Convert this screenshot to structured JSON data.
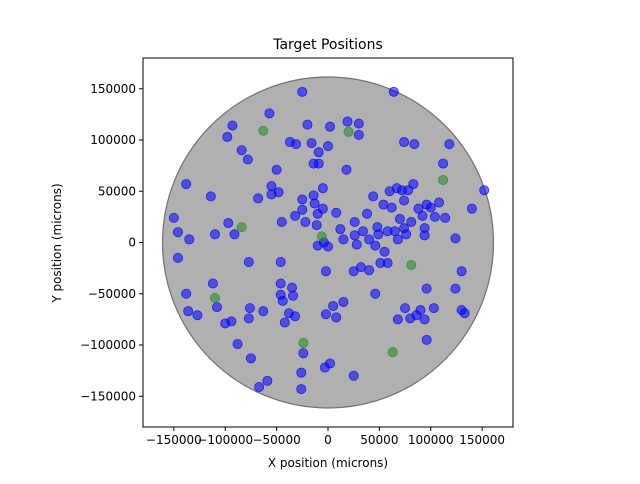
{
  "chart_data": {
    "type": "scatter",
    "title": "Target Positions",
    "xlabel": "X position (microns)",
    "ylabel": "Y position (microns)",
    "xlim": [
      -180000,
      180000
    ],
    "ylim": [
      -180000,
      180000
    ],
    "xticks": [
      -150000,
      -100000,
      -50000,
      0,
      50000,
      100000,
      150000
    ],
    "yticks": [
      -150000,
      -100000,
      -50000,
      0,
      50000,
      100000,
      150000
    ],
    "xtick_labels": [
      "−150000",
      "−100000",
      "−50000",
      "0",
      "50000",
      "100000",
      "150000"
    ],
    "ytick_labels": [
      "−150000",
      "−100000",
      "−50000",
      "0",
      "50000",
      "100000",
      "150000"
    ],
    "grid": false,
    "legend": "none",
    "field": {
      "center": [
        0,
        0
      ],
      "radius": 161000,
      "color": "#b0b0b0",
      "edge_color": "#707070"
    },
    "series": [
      {
        "color": "#0000ff",
        "points": [
          [
            -150000,
            24000
          ],
          [
            -146000,
            10000
          ],
          [
            -138000,
            57000
          ],
          [
            -135000,
            3000
          ],
          [
            -146000,
            -15000
          ],
          [
            -138000,
            -50000
          ],
          [
            -136000,
            -67000
          ],
          [
            -127000,
            -71000
          ],
          [
            -114000,
            45000
          ],
          [
            -110000,
            8000
          ],
          [
            -112000,
            -40000
          ],
          [
            -108000,
            -63000
          ],
          [
            -100000,
            -79000
          ],
          [
            -97000,
            19000
          ],
          [
            -94000,
            -77000
          ],
          [
            -91000,
            8000
          ],
          [
            -93000,
            114000
          ],
          [
            -98000,
            103000
          ],
          [
            -84000,
            90000
          ],
          [
            -78000,
            81000
          ],
          [
            -77000,
            -74000
          ],
          [
            -76000,
            -64000
          ],
          [
            -77000,
            -19000
          ],
          [
            -75000,
            -113000
          ],
          [
            -88000,
            -99000
          ],
          [
            -68000,
            43000
          ],
          [
            -63000,
            -67000
          ],
          [
            -67000,
            -141000
          ],
          [
            -59000,
            -135000
          ],
          [
            -57000,
            126000
          ],
          [
            -55000,
            55000
          ],
          [
            -55000,
            47000
          ],
          [
            -50000,
            71000
          ],
          [
            -48000,
            49000
          ],
          [
            -45000,
            20000
          ],
          [
            -46000,
            -19000
          ],
          [
            -46000,
            -40000
          ],
          [
            -46000,
            -51000
          ],
          [
            -44000,
            -57000
          ],
          [
            -42000,
            -78000
          ],
          [
            -35000,
            -44000
          ],
          [
            -34000,
            -52000
          ],
          [
            -38000,
            -69000
          ],
          [
            -32000,
            -72000
          ],
          [
            -37000,
            98000
          ],
          [
            -31000,
            96000
          ],
          [
            -25000,
            147000
          ],
          [
            -24000,
            -108000
          ],
          [
            -26000,
            -127000
          ],
          [
            -26000,
            -143000
          ],
          [
            -20000,
            115000
          ],
          [
            -16000,
            97000
          ],
          [
            -14000,
            77000
          ],
          [
            -9000,
            77000
          ],
          [
            -9000,
            88000
          ],
          [
            -32000,
            26000
          ],
          [
            -25000,
            42000
          ],
          [
            -25000,
            32000
          ],
          [
            -22000,
            20000
          ],
          [
            -14000,
            46000
          ],
          [
            -13000,
            38000
          ],
          [
            -10000,
            28000
          ],
          [
            -11000,
            17000
          ],
          [
            -10000,
            -3000
          ],
          [
            -5000,
            53000
          ],
          [
            -5000,
            33000
          ],
          [
            -4000,
            0
          ],
          [
            0,
            94000
          ],
          [
            2000,
            113000
          ],
          [
            0,
            -4000
          ],
          [
            -2000,
            -28000
          ],
          [
            -2000,
            -70000
          ],
          [
            5000,
            -62000
          ],
          [
            8000,
            -73000
          ],
          [
            -3000,
            -122000
          ],
          [
            2000,
            -118000
          ],
          [
            8000,
            29000
          ],
          [
            12000,
            13000
          ],
          [
            15000,
            3000
          ],
          [
            15000,
            -58000
          ],
          [
            18000,
            71000
          ],
          [
            19000,
            118000
          ],
          [
            25000,
            -28000
          ],
          [
            25000,
            -130000
          ],
          [
            26000,
            20000
          ],
          [
            26000,
            7000
          ],
          [
            28000,
            -2000
          ],
          [
            30000,
            116000
          ],
          [
            30000,
            105000
          ],
          [
            32000,
            -24000
          ],
          [
            34000,
            11000
          ],
          [
            38000,
            28000
          ],
          [
            40000,
            3000
          ],
          [
            40000,
            -27000
          ],
          [
            44000,
            45000
          ],
          [
            46000,
            -50000
          ],
          [
            46000,
            -3000
          ],
          [
            48000,
            15000
          ],
          [
            49000,
            8000
          ],
          [
            51000,
            -20000
          ],
          [
            54000,
            37000
          ],
          [
            55000,
            -9000
          ],
          [
            58000,
            11000
          ],
          [
            58000,
            -20000
          ],
          [
            60000,
            50000
          ],
          [
            62000,
            34000
          ],
          [
            64000,
            147000
          ],
          [
            65000,
            11000
          ],
          [
            67000,
            53000
          ],
          [
            68000,
            3000
          ],
          [
            68000,
            -75000
          ],
          [
            70000,
            23000
          ],
          [
            72000,
            51000
          ],
          [
            74000,
            98000
          ],
          [
            74000,
            14000
          ],
          [
            74000,
            41000
          ],
          [
            75000,
            -64000
          ],
          [
            76000,
            8000
          ],
          [
            78000,
            51000
          ],
          [
            80000,
            -74000
          ],
          [
            81000,
            20000
          ],
          [
            83000,
            57000
          ],
          [
            84000,
            96000
          ],
          [
            86000,
            -71000
          ],
          [
            88000,
            33000
          ],
          [
            90000,
            -66000
          ],
          [
            92000,
            26000
          ],
          [
            94000,
            14000
          ],
          [
            94000,
            7000
          ],
          [
            96000,
            37000
          ],
          [
            96000,
            -45000
          ],
          [
            94000,
            -75000
          ],
          [
            96000,
            -95000
          ],
          [
            100000,
            34000
          ],
          [
            103000,
            -64000
          ],
          [
            104000,
            25000
          ],
          [
            108000,
            39000
          ],
          [
            112000,
            77000
          ],
          [
            114000,
            24000
          ],
          [
            118000,
            96000
          ],
          [
            124000,
            4000
          ],
          [
            124000,
            -45000
          ],
          [
            130000,
            -28000
          ],
          [
            130000,
            -66000
          ],
          [
            133000,
            -69000
          ],
          [
            140000,
            33000
          ],
          [
            152000,
            51000
          ]
        ]
      },
      {
        "color": "#228b22",
        "points": [
          [
            -63000,
            109000
          ],
          [
            -84000,
            15000
          ],
          [
            -110000,
            -54000
          ],
          [
            -24000,
            -98000
          ],
          [
            -6000,
            6000
          ],
          [
            20000,
            108000
          ],
          [
            63000,
            -107000
          ],
          [
            81000,
            -22000
          ],
          [
            112000,
            61000
          ]
        ]
      }
    ]
  }
}
